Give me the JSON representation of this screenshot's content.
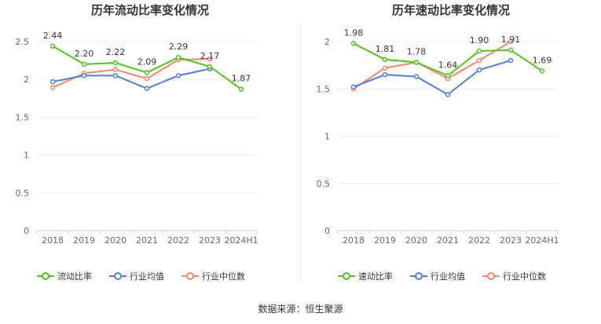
{
  "source": "数据来源：恒生聚源",
  "chart_data": [
    {
      "type": "line",
      "title": "历年流动比率变化情况",
      "categories": [
        "2018",
        "2019",
        "2020",
        "2021",
        "2022",
        "2023",
        "2024H1"
      ],
      "ylim": [
        0,
        2.5
      ],
      "yticks": [
        "0",
        "0.5",
        "1",
        "1.5",
        "2",
        "2.5"
      ],
      "grid": true,
      "legend_position": "bottom",
      "series": [
        {
          "name": "流动比率",
          "color": "#52c41a",
          "values": [
            2.44,
            2.2,
            2.22,
            2.09,
            2.29,
            2.17,
            1.87
          ],
          "labels": [
            "2.44",
            "2.20",
            "2.22",
            "2.09",
            "2.29",
            "2.17",
            "1.87"
          ]
        },
        {
          "name": "行业均值",
          "color": "#4e7ddb",
          "values": [
            1.97,
            2.05,
            2.05,
            1.88,
            2.05,
            2.14,
            null
          ]
        },
        {
          "name": "行业中位数",
          "color": "#f4896b",
          "values": [
            1.89,
            2.08,
            2.13,
            2.01,
            2.26,
            2.27,
            null
          ]
        }
      ]
    },
    {
      "type": "line",
      "title": "历年速动比率变化情况",
      "categories": [
        "2018",
        "2019",
        "2020",
        "2021",
        "2022",
        "2023",
        "2024H1"
      ],
      "ylim": [
        0,
        2
      ],
      "yticks": [
        "0",
        "0.5",
        "1",
        "1.5",
        "2"
      ],
      "grid": true,
      "legend_position": "bottom",
      "series": [
        {
          "name": "速动比率",
          "color": "#52c41a",
          "values": [
            1.98,
            1.81,
            1.78,
            1.64,
            1.9,
            1.91,
            1.69
          ],
          "labels": [
            "1.98",
            "1.81",
            "1.78",
            "1.64",
            "1.90",
            "1.91",
            "1.69"
          ]
        },
        {
          "name": "行业均值",
          "color": "#4e7ddb",
          "values": [
            1.52,
            1.65,
            1.63,
            1.44,
            1.7,
            1.8,
            null
          ]
        },
        {
          "name": "行业中位数",
          "color": "#f4896b",
          "values": [
            1.5,
            1.72,
            1.78,
            1.61,
            1.8,
            2.0,
            null
          ]
        }
      ]
    }
  ]
}
